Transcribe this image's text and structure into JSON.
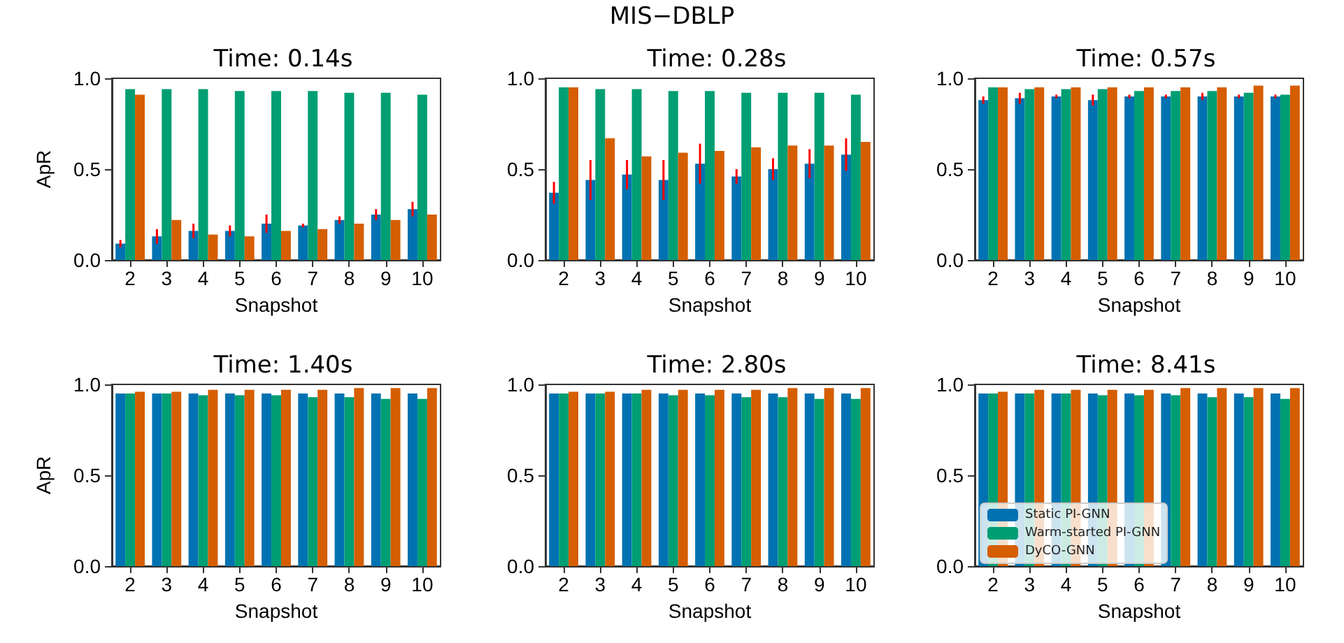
{
  "chart_data": [
    {
      "type": "bar",
      "title": "Time: 0.14s",
      "xlabel": "Snapshot",
      "ylabel": "ApR",
      "annotations": [
        "MIS−DBLP"
      ],
      "categories": [
        "2",
        "3",
        "4",
        "5",
        "6",
        "7",
        "8",
        "9",
        "10"
      ],
      "ylim": [
        0,
        1
      ],
      "yticks": [
        {
          "value": 0,
          "label": "0.0"
        },
        {
          "value": 0.5,
          "label": "0.5"
        },
        {
          "value": 1,
          "label": "1.0"
        }
      ],
      "grid": false,
      "legend": false,
      "series": [
        {
          "color": "#0072b2",
          "values": [
            0.09,
            0.13,
            0.16,
            0.16,
            0.2,
            0.19,
            0.22,
            0.25,
            0.28
          ],
          "errors": [
            0.02,
            0.04,
            0.04,
            0.03,
            0.05,
            0.01,
            0.02,
            0.03,
            0.04
          ]
        },
        {
          "color": "#009e73",
          "values": [
            0.94,
            0.94,
            0.94,
            0.93,
            0.93,
            0.93,
            0.92,
            0.92,
            0.91
          ]
        },
        {
          "color": "#d55e00",
          "values": [
            0.91,
            0.22,
            0.14,
            0.13,
            0.16,
            0.17,
            0.2,
            0.22,
            0.25
          ]
        }
      ]
    },
    {
      "type": "bar",
      "title": "Time: 0.28s",
      "xlabel": "Snapshot",
      "categories": [
        "2",
        "3",
        "4",
        "5",
        "6",
        "7",
        "8",
        "9",
        "10"
      ],
      "ylim": [
        0,
        1
      ],
      "yticks": [
        {
          "value": 0,
          "label": "0.0"
        },
        {
          "value": 0.5,
          "label": "0.5"
        },
        {
          "value": 1,
          "label": "1.0"
        }
      ],
      "grid": false,
      "legend": false,
      "series": [
        {
          "color": "#0072b2",
          "values": [
            0.37,
            0.44,
            0.47,
            0.44,
            0.53,
            0.46,
            0.5,
            0.53,
            0.58
          ],
          "errors": [
            0.06,
            0.11,
            0.08,
            0.11,
            0.11,
            0.04,
            0.06,
            0.08,
            0.09
          ]
        },
        {
          "color": "#009e73",
          "values": [
            0.95,
            0.94,
            0.94,
            0.93,
            0.93,
            0.92,
            0.92,
            0.92,
            0.91
          ]
        },
        {
          "color": "#d55e00",
          "values": [
            0.95,
            0.67,
            0.57,
            0.59,
            0.6,
            0.62,
            0.63,
            0.63,
            0.65
          ]
        }
      ]
    },
    {
      "type": "bar",
      "title": "Time: 0.57s",
      "xlabel": "Snapshot",
      "categories": [
        "2",
        "3",
        "4",
        "5",
        "6",
        "7",
        "8",
        "9",
        "10"
      ],
      "ylim": [
        0,
        1
      ],
      "yticks": [
        {
          "value": 0,
          "label": "0.0"
        },
        {
          "value": 0.5,
          "label": "0.5"
        },
        {
          "value": 1,
          "label": "1.0"
        }
      ],
      "grid": false,
      "legend": false,
      "series": [
        {
          "color": "#0072b2",
          "values": [
            0.88,
            0.89,
            0.9,
            0.88,
            0.9,
            0.9,
            0.9,
            0.9,
            0.9
          ],
          "errors": [
            0.02,
            0.03,
            0.01,
            0.03,
            0.01,
            0.01,
            0.02,
            0.01,
            0.01
          ]
        },
        {
          "color": "#009e73",
          "values": [
            0.95,
            0.94,
            0.94,
            0.94,
            0.93,
            0.93,
            0.93,
            0.92,
            0.91
          ]
        },
        {
          "color": "#d55e00",
          "values": [
            0.95,
            0.95,
            0.95,
            0.95,
            0.95,
            0.95,
            0.95,
            0.96,
            0.96
          ]
        }
      ]
    },
    {
      "type": "bar",
      "title": "Time: 1.40s",
      "xlabel": "Snapshot",
      "ylabel": "ApR",
      "categories": [
        "2",
        "3",
        "4",
        "5",
        "6",
        "7",
        "8",
        "9",
        "10"
      ],
      "ylim": [
        0,
        1
      ],
      "yticks": [
        {
          "value": 0,
          "label": "0.0"
        },
        {
          "value": 0.5,
          "label": "0.5"
        },
        {
          "value": 1,
          "label": "1.0"
        }
      ],
      "grid": false,
      "legend": false,
      "series": [
        {
          "color": "#0072b2",
          "values": [
            0.95,
            0.95,
            0.95,
            0.95,
            0.95,
            0.95,
            0.95,
            0.95,
            0.95
          ]
        },
        {
          "color": "#009e73",
          "values": [
            0.95,
            0.95,
            0.94,
            0.94,
            0.94,
            0.93,
            0.93,
            0.92,
            0.92
          ]
        },
        {
          "color": "#d55e00",
          "values": [
            0.96,
            0.96,
            0.97,
            0.97,
            0.97,
            0.97,
            0.98,
            0.98,
            0.98
          ]
        }
      ]
    },
    {
      "type": "bar",
      "title": "Time: 2.80s",
      "xlabel": "Snapshot",
      "categories": [
        "2",
        "3",
        "4",
        "5",
        "6",
        "7",
        "8",
        "9",
        "10"
      ],
      "ylim": [
        0,
        1
      ],
      "yticks": [
        {
          "value": 0,
          "label": "0.0"
        },
        {
          "value": 0.5,
          "label": "0.5"
        },
        {
          "value": 1,
          "label": "1.0"
        }
      ],
      "grid": false,
      "legend": false,
      "series": [
        {
          "color": "#0072b2",
          "values": [
            0.95,
            0.95,
            0.95,
            0.95,
            0.95,
            0.95,
            0.95,
            0.95,
            0.95
          ]
        },
        {
          "color": "#009e73",
          "values": [
            0.95,
            0.95,
            0.95,
            0.94,
            0.94,
            0.93,
            0.93,
            0.92,
            0.92
          ]
        },
        {
          "color": "#d55e00",
          "values": [
            0.96,
            0.96,
            0.97,
            0.97,
            0.97,
            0.97,
            0.98,
            0.98,
            0.98
          ]
        }
      ]
    },
    {
      "type": "bar",
      "title": "Time: 8.41s",
      "xlabel": "Snapshot",
      "categories": [
        "2",
        "3",
        "4",
        "5",
        "6",
        "7",
        "8",
        "9",
        "10"
      ],
      "ylim": [
        0,
        1
      ],
      "yticks": [
        {
          "value": 0,
          "label": "0.0"
        },
        {
          "value": 0.5,
          "label": "0.5"
        },
        {
          "value": 1,
          "label": "1.0"
        }
      ],
      "grid": false,
      "legend": "bottom left",
      "series": [
        {
          "name": "Static PI-GNN",
          "color": "#0072b2",
          "values": [
            0.95,
            0.95,
            0.95,
            0.95,
            0.95,
            0.95,
            0.95,
            0.95,
            0.95
          ]
        },
        {
          "name": "Warm-started PI-GNN",
          "color": "#009e73",
          "values": [
            0.95,
            0.95,
            0.95,
            0.94,
            0.94,
            0.94,
            0.93,
            0.93,
            0.92
          ]
        },
        {
          "name": "DyCO-GNN",
          "color": "#d55e00",
          "values": [
            0.96,
            0.97,
            0.97,
            0.97,
            0.97,
            0.98,
            0.98,
            0.98,
            0.98
          ]
        }
      ]
    }
  ]
}
